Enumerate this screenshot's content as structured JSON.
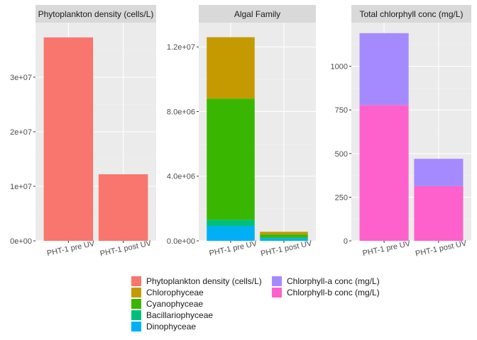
{
  "chart_data": [
    {
      "type": "bar",
      "title": "Phytoplankton density (cells/L)",
      "categories": [
        "PHT-1 pre UV",
        "PHT-1 post UV"
      ],
      "series": [
        {
          "name": "Phytoplankton density (cells/L)",
          "values": [
            37300000,
            12200000
          ],
          "color": "#F8766D"
        }
      ],
      "ylim": [
        0,
        40000000
      ],
      "yticks": [
        0,
        10000000,
        20000000,
        30000000
      ],
      "ytick_labels": [
        "0e+00",
        "1e+07",
        "2e+07",
        "3e+07"
      ]
    },
    {
      "type": "bar",
      "stacked": true,
      "title": "Algal Family",
      "categories": [
        "PHT-1 pre UV",
        "PHT-1 post UV"
      ],
      "series": [
        {
          "name": "Dinophyceae",
          "values": [
            900000,
            140000
          ],
          "color": "#00B0F6"
        },
        {
          "name": "Bacillariophyceae",
          "values": [
            400000,
            80000
          ],
          "color": "#00BF7D"
        },
        {
          "name": "Cyanophyceae",
          "values": [
            7500000,
            170000
          ],
          "color": "#39B600"
        },
        {
          "name": "Chlorophyceae",
          "values": [
            3800000,
            170000
          ],
          "color": "#C49A00"
        }
      ],
      "ylim": [
        0,
        13500000
      ],
      "yticks": [
        0,
        4000000,
        8000000,
        12000000
      ],
      "ytick_labels": [
        "0.0e+00",
        "4.0e+06",
        "8.0e+06",
        "1.2e+07"
      ]
    },
    {
      "type": "bar",
      "stacked": true,
      "title": "Total chlorphyll conc (mg/L)",
      "categories": [
        "PHT-1 pre UV",
        "PHT-1 post UV"
      ],
      "series": [
        {
          "name": "Chlorphyll-b conc (mg/L)",
          "values": [
            778,
            313
          ],
          "color": "#FF61CC"
        },
        {
          "name": "Chlorphyll-a conc (mg/L)",
          "values": [
            412,
            157
          ],
          "color": "#A58AFF"
        }
      ],
      "ylim": [
        0,
        1250
      ],
      "yticks": [
        0,
        250,
        500,
        750,
        1000
      ],
      "ytick_labels": [
        "0",
        "250",
        "500",
        "750",
        "1000"
      ]
    }
  ],
  "legend": {
    "placement": "bottom",
    "items": [
      {
        "label": "Phytoplankton density (cells/L)",
        "color": "#F8766D"
      },
      {
        "label": "Chlorophyceae",
        "color": "#C49A00"
      },
      {
        "label": "Cyanophyceae",
        "color": "#39B600"
      },
      {
        "label": "Bacillariophyceae",
        "color": "#00BF7D"
      },
      {
        "label": "Dinophyceae",
        "color": "#00B0F6"
      },
      {
        "label": "Chlorphyll-a conc (mg/L)",
        "color": "#A58AFF"
      },
      {
        "label": "Chlorphyll-b conc (mg/L)",
        "color": "#FF61CC"
      }
    ]
  },
  "style": {
    "panel_background": "#EBEBEB",
    "strip_background": "#D9D9D9",
    "grid_major": "#FFFFFF",
    "grid_minor": "#F2F2F2",
    "grid": true
  }
}
